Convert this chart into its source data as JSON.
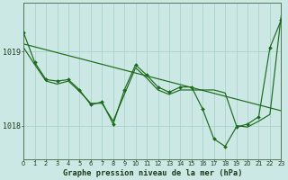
{
  "title": "Graphe pression niveau de la mer (hPa)",
  "background_color": "#cce8e4",
  "grid_color": "#aad4cc",
  "line_color": "#1a6b1a",
  "x_ticks": [
    0,
    1,
    2,
    3,
    4,
    5,
    6,
    7,
    8,
    9,
    10,
    11,
    12,
    13,
    14,
    15,
    16,
    17,
    18,
    19,
    20,
    21,
    22,
    23
  ],
  "y_ticks": [
    1018,
    1019
  ],
  "ylim": [
    1017.55,
    1019.65
  ],
  "xlim": [
    0,
    23
  ],
  "trend_x": [
    0,
    23
  ],
  "trend_y": [
    1019.1,
    1018.2
  ],
  "jagged_x": [
    0,
    1,
    2,
    3,
    4,
    5,
    6,
    7,
    8,
    9,
    10,
    11,
    12,
    13,
    14,
    15,
    16,
    17,
    18,
    19,
    20,
    21,
    22,
    23
  ],
  "jagged_y": [
    1019.25,
    1018.85,
    1018.62,
    1018.6,
    1018.62,
    1018.48,
    1018.28,
    1018.32,
    1018.02,
    1018.48,
    1018.82,
    1018.68,
    1018.52,
    1018.45,
    1018.52,
    1018.52,
    1018.22,
    1017.82,
    1017.72,
    1017.98,
    1018.02,
    1018.12,
    1019.05,
    1019.42
  ],
  "smooth_x": [
    0,
    1,
    2,
    3,
    4,
    5,
    6,
    7,
    8,
    9,
    10,
    11,
    12,
    13,
    14,
    15,
    16,
    17,
    18,
    19,
    20,
    21,
    22,
    23
  ],
  "smooth_y": [
    1019.05,
    1018.82,
    1018.6,
    1018.56,
    1018.6,
    1018.46,
    1018.3,
    1018.3,
    1018.06,
    1018.42,
    1018.78,
    1018.64,
    1018.48,
    1018.42,
    1018.48,
    1018.48,
    1018.48,
    1018.48,
    1018.44,
    1018.0,
    1017.98,
    1018.06,
    1018.15,
    1019.48
  ]
}
